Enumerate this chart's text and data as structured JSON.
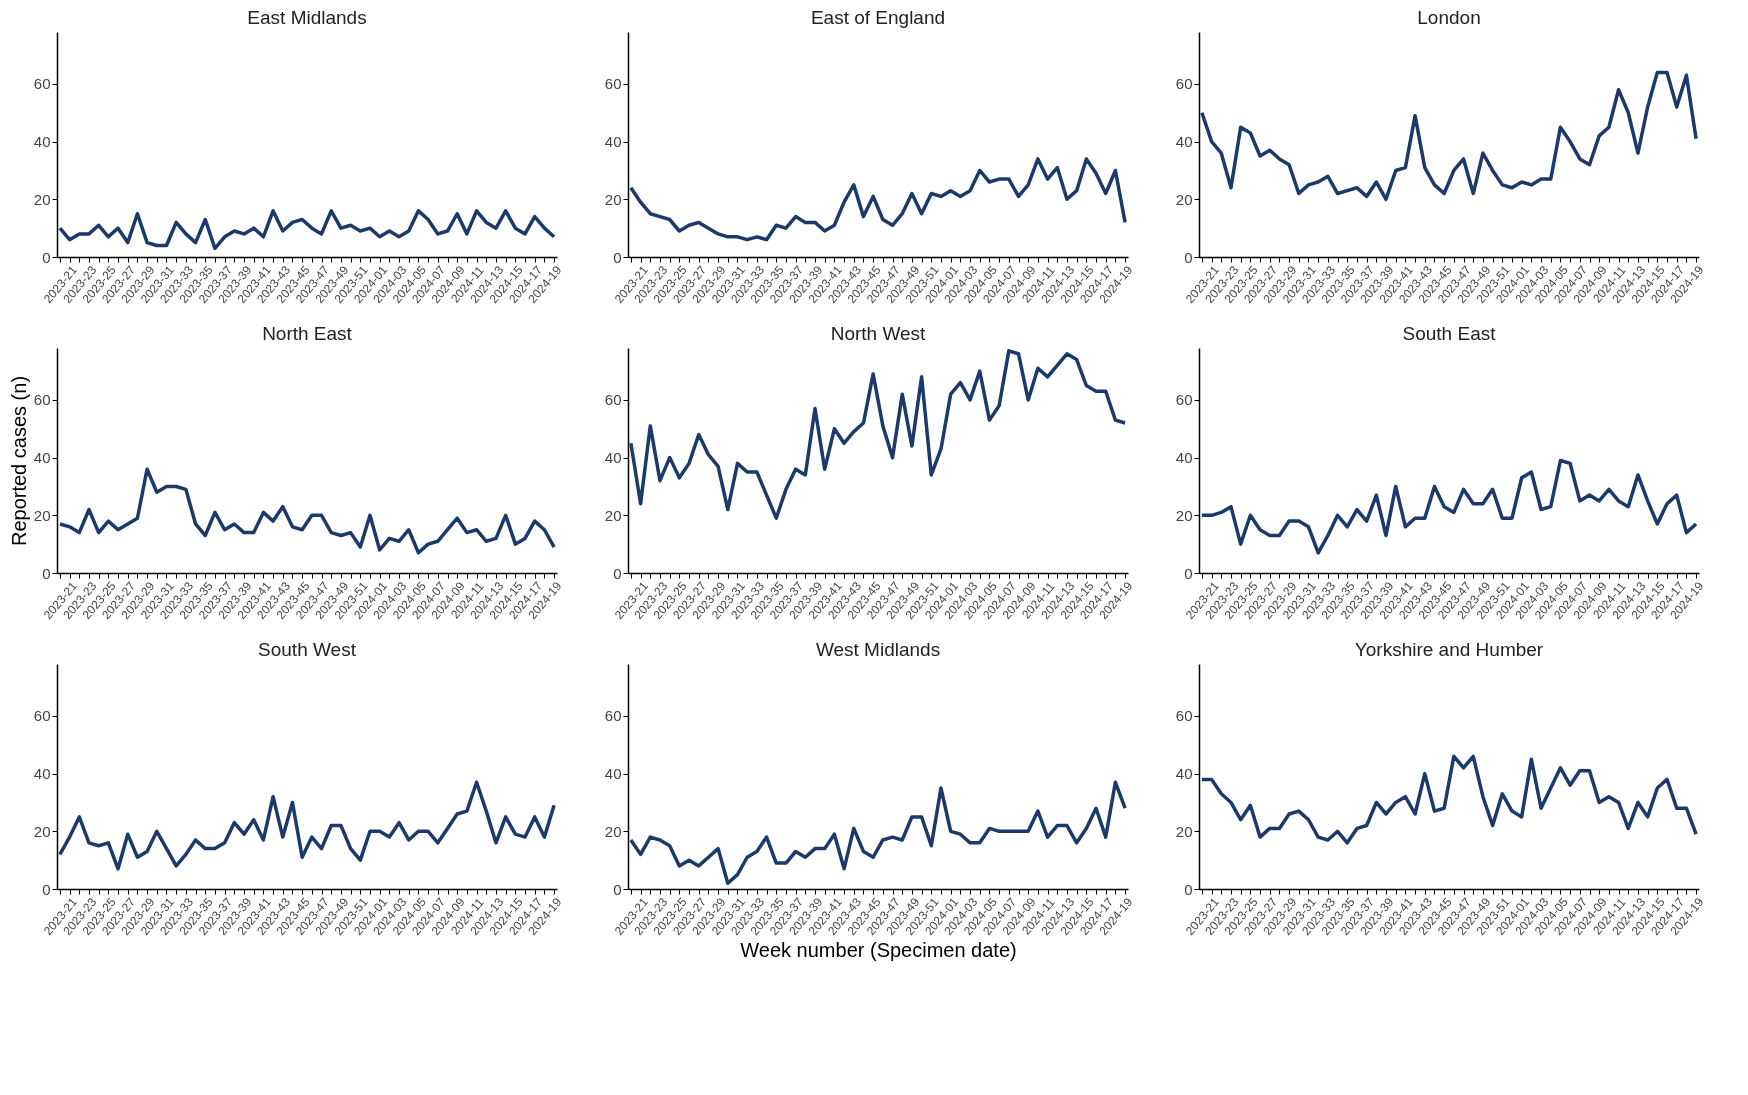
{
  "chart_data": [
    {
      "type": "line",
      "title": "East Midlands",
      "categories": [
        "2023-21",
        null,
        "2023-23",
        null,
        "2023-25",
        null,
        "2023-27",
        null,
        "2023-29",
        null,
        "2023-31",
        null,
        "2023-33",
        null,
        "2023-35",
        null,
        "2023-37",
        null,
        "2023-39",
        null,
        "2023-41",
        null,
        "2023-43",
        null,
        "2023-45",
        null,
        "2023-47",
        null,
        "2023-49",
        null,
        "2023-51",
        null,
        "2024-01",
        null,
        "2024-03",
        null,
        "2024-05",
        null,
        "2024-07",
        null,
        "2024-09",
        null,
        "2024-11",
        null,
        "2024-13",
        null,
        "2024-15",
        null,
        "2024-17",
        null,
        "2024-19",
        null
      ],
      "values": [
        10,
        6,
        8,
        8,
        11,
        7,
        10,
        5,
        15,
        5,
        4,
        4,
        12,
        8,
        5,
        13,
        3,
        7,
        9,
        8,
        10,
        7,
        16,
        9,
        12,
        13,
        10,
        8,
        16,
        10,
        11,
        9,
        10,
        7,
        9,
        7,
        9,
        16,
        13,
        8,
        9,
        15,
        8,
        16,
        12,
        10,
        16,
        10,
        8,
        14,
        10,
        7
      ],
      "color": "#1b3a6b",
      "ylim": [
        0,
        78
      ],
      "yticks": [
        0,
        20,
        40,
        60
      ],
      "grid": false
    },
    {
      "type": "line",
      "title": "East of England",
      "categories": [
        "2023-21",
        null,
        "2023-23",
        null,
        "2023-25",
        null,
        "2023-27",
        null,
        "2023-29",
        null,
        "2023-31",
        null,
        "2023-33",
        null,
        "2023-35",
        null,
        "2023-37",
        null,
        "2023-39",
        null,
        "2023-41",
        null,
        "2023-43",
        null,
        "2023-45",
        null,
        "2023-47",
        null,
        "2023-49",
        null,
        "2023-51",
        null,
        "2024-01",
        null,
        "2024-03",
        null,
        "2024-05",
        null,
        "2024-07",
        null,
        "2024-09",
        null,
        "2024-11",
        null,
        "2024-13",
        null,
        "2024-15",
        null,
        "2024-17",
        null,
        "2024-19",
        null
      ],
      "values": [
        24,
        19,
        15,
        14,
        13,
        9,
        11,
        12,
        10,
        8,
        7,
        7,
        6,
        7,
        6,
        11,
        10,
        14,
        12,
        12,
        9,
        11,
        19,
        25,
        14,
        21,
        13,
        11,
        15,
        22,
        15,
        22,
        21,
        23,
        21,
        23,
        30,
        26,
        27,
        27,
        21,
        25,
        34,
        27,
        31,
        20,
        23,
        34,
        29,
        22,
        30,
        12
      ],
      "color": "#1b3a6b",
      "ylim": [
        0,
        78
      ],
      "yticks": [
        0,
        20,
        40,
        60
      ],
      "grid": false
    },
    {
      "type": "line",
      "title": "London",
      "categories": [
        "2023-21",
        null,
        "2023-23",
        null,
        "2023-25",
        null,
        "2023-27",
        null,
        "2023-29",
        null,
        "2023-31",
        null,
        "2023-33",
        null,
        "2023-35",
        null,
        "2023-37",
        null,
        "2023-39",
        null,
        "2023-41",
        null,
        "2023-43",
        null,
        "2023-45",
        null,
        "2023-47",
        null,
        "2023-49",
        null,
        "2023-51",
        null,
        "2024-01",
        null,
        "2024-03",
        null,
        "2024-05",
        null,
        "2024-07",
        null,
        "2024-09",
        null,
        "2024-11",
        null,
        "2024-13",
        null,
        "2024-15",
        null,
        "2024-17",
        null,
        "2024-19",
        null
      ],
      "values": [
        50,
        40,
        36,
        24,
        45,
        43,
        35,
        37,
        34,
        32,
        22,
        25,
        26,
        28,
        22,
        23,
        24,
        21,
        26,
        20,
        30,
        31,
        49,
        31,
        25,
        22,
        30,
        34,
        22,
        36,
        30,
        25,
        24,
        26,
        25,
        27,
        27,
        45,
        40,
        34,
        32,
        42,
        45,
        58,
        50,
        36,
        52,
        64,
        64,
        52,
        63,
        41
      ],
      "color": "#1b3a6b",
      "ylim": [
        0,
        78
      ],
      "yticks": [
        0,
        20,
        40,
        60
      ],
      "grid": false
    },
    {
      "type": "line",
      "title": "North East",
      "ylabel": "Reported cases (n)",
      "categories": [
        "2023-21",
        null,
        "2023-23",
        null,
        "2023-25",
        null,
        "2023-27",
        null,
        "2023-29",
        null,
        "2023-31",
        null,
        "2023-33",
        null,
        "2023-35",
        null,
        "2023-37",
        null,
        "2023-39",
        null,
        "2023-41",
        null,
        "2023-43",
        null,
        "2023-45",
        null,
        "2023-47",
        null,
        "2023-49",
        null,
        "2023-51",
        null,
        "2024-01",
        null,
        "2024-03",
        null,
        "2024-05",
        null,
        "2024-07",
        null,
        "2024-09",
        null,
        "2024-11",
        null,
        "2024-13",
        null,
        "2024-15",
        null,
        "2024-17",
        null,
        "2024-19",
        null
      ],
      "values": [
        17,
        16,
        14,
        22,
        14,
        18,
        15,
        17,
        19,
        36,
        28,
        30,
        30,
        29,
        17,
        13,
        21,
        15,
        17,
        14,
        14,
        21,
        18,
        23,
        16,
        15,
        20,
        20,
        14,
        13,
        14,
        9,
        20,
        8,
        12,
        11,
        15,
        7,
        10,
        11,
        15,
        19,
        14,
        15,
        11,
        12,
        20,
        10,
        12,
        18,
        15,
        9
      ],
      "color": "#1b3a6b",
      "ylim": [
        0,
        78
      ],
      "yticks": [
        0,
        20,
        40,
        60
      ],
      "grid": false
    },
    {
      "type": "line",
      "title": "North West",
      "categories": [
        "2023-21",
        null,
        "2023-23",
        null,
        "2023-25",
        null,
        "2023-27",
        null,
        "2023-29",
        null,
        "2023-31",
        null,
        "2023-33",
        null,
        "2023-35",
        null,
        "2023-37",
        null,
        "2023-39",
        null,
        "2023-41",
        null,
        "2023-43",
        null,
        "2023-45",
        null,
        "2023-47",
        null,
        "2023-49",
        null,
        "2023-51",
        null,
        "2024-01",
        null,
        "2024-03",
        null,
        "2024-05",
        null,
        "2024-07",
        null,
        "2024-09",
        null,
        "2024-11",
        null,
        "2024-13",
        null,
        "2024-15",
        null,
        "2024-17",
        null,
        "2024-19",
        null
      ],
      "values": [
        45,
        24,
        51,
        32,
        40,
        33,
        38,
        48,
        41,
        37,
        22,
        38,
        35,
        35,
        27,
        19,
        29,
        36,
        34,
        57,
        36,
        50,
        45,
        49,
        52,
        69,
        51,
        40,
        62,
        44,
        68,
        34,
        43,
        62,
        66,
        60,
        70,
        53,
        58,
        77,
        76,
        60,
        71,
        68,
        72,
        76,
        74,
        65,
        63,
        63,
        53,
        52
      ],
      "color": "#1b3a6b",
      "ylim": [
        0,
        78
      ],
      "yticks": [
        0,
        20,
        40,
        60
      ],
      "grid": false
    },
    {
      "type": "line",
      "title": "South East",
      "categories": [
        "2023-21",
        null,
        "2023-23",
        null,
        "2023-25",
        null,
        "2023-27",
        null,
        "2023-29",
        null,
        "2023-31",
        null,
        "2023-33",
        null,
        "2023-35",
        null,
        "2023-37",
        null,
        "2023-39",
        null,
        "2023-41",
        null,
        "2023-43",
        null,
        "2023-45",
        null,
        "2023-47",
        null,
        "2023-49",
        null,
        "2023-51",
        null,
        "2024-01",
        null,
        "2024-03",
        null,
        "2024-05",
        null,
        "2024-07",
        null,
        "2024-09",
        null,
        "2024-11",
        null,
        "2024-13",
        null,
        "2024-15",
        null,
        "2024-17",
        null,
        "2024-19",
        null
      ],
      "values": [
        20,
        20,
        21,
        23,
        10,
        20,
        15,
        13,
        13,
        18,
        18,
        16,
        7,
        13,
        20,
        16,
        22,
        18,
        27,
        13,
        30,
        16,
        19,
        19,
        30,
        23,
        21,
        29,
        24,
        24,
        29,
        19,
        19,
        33,
        35,
        22,
        23,
        39,
        38,
        25,
        27,
        25,
        29,
        25,
        23,
        34,
        25,
        17,
        24,
        27,
        14,
        17
      ],
      "color": "#1b3a6b",
      "ylim": [
        0,
        78
      ],
      "yticks": [
        0,
        20,
        40,
        60
      ],
      "grid": false
    },
    {
      "type": "line",
      "title": "South West",
      "categories": [
        "2023-21",
        null,
        "2023-23",
        null,
        "2023-25",
        null,
        "2023-27",
        null,
        "2023-29",
        null,
        "2023-31",
        null,
        "2023-33",
        null,
        "2023-35",
        null,
        "2023-37",
        null,
        "2023-39",
        null,
        "2023-41",
        null,
        "2023-43",
        null,
        "2023-45",
        null,
        "2023-47",
        null,
        "2023-49",
        null,
        "2023-51",
        null,
        "2024-01",
        null,
        "2024-03",
        null,
        "2024-05",
        null,
        "2024-07",
        null,
        "2024-09",
        null,
        "2024-11",
        null,
        "2024-13",
        null,
        "2024-15",
        null,
        "2024-17",
        null,
        "2024-19",
        null
      ],
      "values": [
        12,
        18,
        25,
        16,
        15,
        16,
        7,
        19,
        11,
        13,
        20,
        14,
        8,
        12,
        17,
        14,
        14,
        16,
        23,
        19,
        24,
        17,
        32,
        18,
        30,
        11,
        18,
        14,
        22,
        22,
        14,
        10,
        20,
        20,
        18,
        23,
        17,
        20,
        20,
        16,
        21,
        26,
        27,
        37,
        27,
        16,
        25,
        19,
        18,
        25,
        18,
        29
      ],
      "color": "#1b3a6b",
      "ylim": [
        0,
        78
      ],
      "yticks": [
        0,
        20,
        40,
        60
      ],
      "grid": false
    },
    {
      "type": "line",
      "title": "West Midlands",
      "xlabel": "Week number (Specimen date)",
      "categories": [
        "2023-21",
        null,
        "2023-23",
        null,
        "2023-25",
        null,
        "2023-27",
        null,
        "2023-29",
        null,
        "2023-31",
        null,
        "2023-33",
        null,
        "2023-35",
        null,
        "2023-37",
        null,
        "2023-39",
        null,
        "2023-41",
        null,
        "2023-43",
        null,
        "2023-45",
        null,
        "2023-47",
        null,
        "2023-49",
        null,
        "2023-51",
        null,
        "2024-01",
        null,
        "2024-03",
        null,
        "2024-05",
        null,
        "2024-07",
        null,
        "2024-09",
        null,
        "2024-11",
        null,
        "2024-13",
        null,
        "2024-15",
        null,
        "2024-17",
        null,
        "2024-19",
        null
      ],
      "values": [
        17,
        12,
        18,
        17,
        15,
        8,
        10,
        8,
        11,
        14,
        2,
        5,
        11,
        13,
        18,
        9,
        9,
        13,
        11,
        14,
        14,
        19,
        7,
        21,
        13,
        11,
        17,
        18,
        17,
        25,
        25,
        15,
        35,
        20,
        19,
        16,
        16,
        21,
        20,
        20,
        20,
        20,
        27,
        18,
        22,
        22,
        16,
        21,
        28,
        18,
        37,
        28
      ],
      "color": "#1b3a6b",
      "ylim": [
        0,
        78
      ],
      "yticks": [
        0,
        20,
        40,
        60
      ],
      "grid": false
    },
    {
      "type": "line",
      "title": "Yorkshire and Humber",
      "categories": [
        "2023-21",
        null,
        "2023-23",
        null,
        "2023-25",
        null,
        "2023-27",
        null,
        "2023-29",
        null,
        "2023-31",
        null,
        "2023-33",
        null,
        "2023-35",
        null,
        "2023-37",
        null,
        "2023-39",
        null,
        "2023-41",
        null,
        "2023-43",
        null,
        "2023-45",
        null,
        "2023-47",
        null,
        "2023-49",
        null,
        "2023-51",
        null,
        "2024-01",
        null,
        "2024-03",
        null,
        "2024-05",
        null,
        "2024-07",
        null,
        "2024-09",
        null,
        "2024-11",
        null,
        "2024-13",
        null,
        "2024-15",
        null,
        "2024-17",
        null,
        "2024-19",
        null
      ],
      "values": [
        38,
        38,
        33,
        30,
        24,
        29,
        18,
        21,
        21,
        26,
        27,
        24,
        18,
        17,
        20,
        16,
        21,
        22,
        30,
        26,
        30,
        32,
        26,
        40,
        27,
        28,
        46,
        42,
        46,
        32,
        22,
        33,
        27,
        25,
        45,
        28,
        35,
        42,
        36,
        41,
        41,
        30,
        32,
        30,
        21,
        30,
        25,
        35,
        38,
        28,
        28,
        19
      ],
      "color": "#1b3a6b",
      "ylim": [
        0,
        78
      ],
      "yticks": [
        0,
        20,
        40,
        60
      ],
      "grid": false
    }
  ]
}
